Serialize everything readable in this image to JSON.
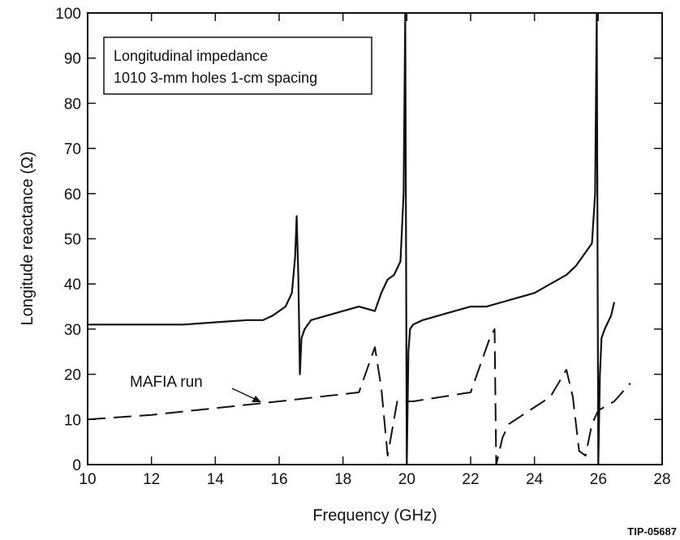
{
  "chart_data": {
    "type": "line",
    "title": "",
    "xlabel": "Frequency (GHz)",
    "ylabel": "Longitude reactance (Ω)",
    "xlim": [
      10,
      28
    ],
    "ylim": [
      0,
      100
    ],
    "x_ticks": [
      "10",
      "12",
      "14",
      "16",
      "18",
      "20",
      "22",
      "24",
      "26",
      "28"
    ],
    "y_ticks": [
      "0",
      "10",
      "20",
      "30",
      "40",
      "50",
      "60",
      "70",
      "80",
      "90",
      "100"
    ],
    "grid": false,
    "legend_box": {
      "line1": "Longitudinal impedance",
      "line2": "1010 3-mm holes 1-cm spacing",
      "placement": "top-left"
    },
    "annotation": {
      "text": "MAFIA run"
    },
    "figure_id": "TIP-05687",
    "series": [
      {
        "style": "solid",
        "x": [
          10.0,
          11.0,
          12.0,
          13.0,
          14.0,
          15.0,
          15.5,
          15.8,
          16.0,
          16.2,
          16.4,
          16.5,
          16.55,
          16.6,
          16.65,
          16.7,
          16.8,
          17.0,
          17.5,
          18.0,
          18.5,
          19.0,
          19.2,
          19.4,
          19.6,
          19.8,
          19.9,
          19.95,
          20.0,
          20.05,
          20.1,
          20.2,
          20.5,
          21.0,
          21.5,
          22.0,
          22.5,
          23.0,
          23.5,
          24.0,
          24.5,
          25.0,
          25.3,
          25.6,
          25.8,
          25.9,
          25.95,
          26.0,
          26.05,
          26.1,
          26.2,
          26.4,
          26.5
        ],
        "y": [
          31,
          31,
          31,
          31,
          31.5,
          32,
          32,
          33,
          34,
          35,
          38,
          46,
          55,
          42,
          20,
          28,
          30,
          32,
          33,
          34,
          35,
          34,
          38,
          41,
          42,
          45,
          60,
          100,
          0,
          25,
          30,
          31,
          32,
          33,
          34,
          35,
          35,
          36,
          37,
          38,
          40,
          42,
          44,
          47,
          49,
          60,
          100,
          0,
          20,
          28,
          30,
          33,
          36
        ]
      },
      {
        "name": "MAFIA run",
        "style": "dashed",
        "x": [
          10.0,
          12.0,
          14.0,
          16.0,
          18.5,
          19.0,
          19.2,
          19.4,
          19.6,
          19.7,
          20.2,
          22.0,
          22.6,
          22.75,
          22.8,
          22.9,
          23.0,
          23.2,
          24.5,
          25.0,
          25.2,
          25.4,
          25.6,
          25.8,
          26.0,
          26.5,
          27.0
        ],
        "y": [
          10,
          11,
          12.5,
          14,
          16,
          26,
          17,
          2,
          10,
          14,
          14,
          16,
          28,
          30,
          0,
          3,
          6,
          9,
          15,
          21,
          15,
          3,
          2,
          9,
          12,
          14,
          18
        ]
      }
    ]
  }
}
